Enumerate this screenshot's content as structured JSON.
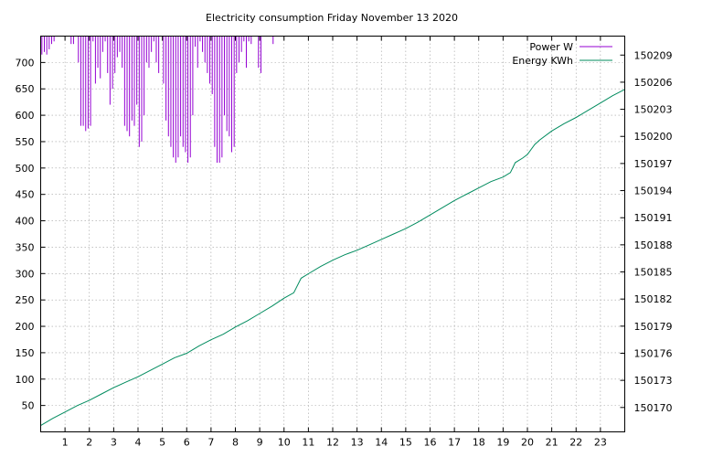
{
  "chart_data": {
    "type": "line",
    "title": "Electricity consumption Friday November 13 2020",
    "xlim": [
      0,
      24
    ],
    "x_ticks": [
      1,
      2,
      3,
      4,
      5,
      6,
      7,
      8,
      9,
      10,
      11,
      12,
      13,
      14,
      15,
      16,
      17,
      18,
      19,
      20,
      21,
      22,
      23
    ],
    "y_left": {
      "lim": [
        0,
        750
      ],
      "ticks": [
        50,
        100,
        150,
        200,
        250,
        300,
        350,
        400,
        450,
        500,
        550,
        600,
        650,
        700
      ]
    },
    "y_right": {
      "lim": [
        150167.3,
        150211.1
      ],
      "ticks": [
        150170,
        150173,
        150176,
        150179,
        150182,
        150185,
        150188,
        150191,
        150194,
        150197,
        150200,
        150203,
        150206,
        150209
      ]
    },
    "grid": true,
    "legend_position": "top-right",
    "series": [
      {
        "name": "Power W",
        "color": "#9400d3",
        "axis": "left",
        "style": "impulses",
        "x": [
          0.05,
          0.15,
          0.25,
          0.35,
          0.45,
          0.55,
          1.25,
          1.35,
          1.55,
          1.65,
          1.75,
          1.85,
          1.95,
          2.05,
          2.15,
          2.25,
          2.35,
          2.45,
          2.55,
          2.65,
          2.75,
          2.85,
          2.95,
          3.05,
          3.15,
          3.25,
          3.35,
          3.45,
          3.55,
          3.65,
          3.75,
          3.85,
          3.95,
          4.05,
          4.15,
          4.25,
          4.35,
          4.45,
          4.55,
          4.65,
          4.75,
          4.85,
          5.05,
          5.15,
          5.25,
          5.35,
          5.45,
          5.55,
          5.65,
          5.75,
          5.85,
          5.95,
          6.05,
          6.15,
          6.25,
          6.35,
          6.45,
          6.55,
          6.65,
          6.75,
          6.85,
          6.95,
          7.05,
          7.15,
          7.25,
          7.35,
          7.45,
          7.55,
          7.65,
          7.75,
          7.85,
          7.95,
          8.05,
          8.15,
          8.25,
          8.35,
          8.45,
          8.55,
          8.65,
          8.95,
          9.05,
          9.55
        ],
        "values": [
          715,
          720,
          715,
          725,
          735,
          740,
          735,
          735,
          700,
          580,
          580,
          570,
          575,
          580,
          740,
          660,
          690,
          670,
          720,
          740,
          680,
          620,
          650,
          680,
          710,
          720,
          690,
          580,
          570,
          560,
          590,
          580,
          620,
          540,
          550,
          600,
          700,
          690,
          720,
          740,
          700,
          680,
          660,
          590,
          560,
          540,
          520,
          510,
          520,
          560,
          540,
          530,
          510,
          520,
          600,
          730,
          690,
          740,
          720,
          700,
          680,
          660,
          640,
          540,
          510,
          510,
          520,
          600,
          570,
          560,
          530,
          540,
          680,
          700,
          720,
          740,
          690,
          740,
          735,
          690,
          680,
          735
        ]
      },
      {
        "name": "Energy KWh",
        "color": "#008b5e",
        "axis": "right",
        "style": "line",
        "x": [
          0,
          0.5,
          1,
          1.5,
          2,
          2.5,
          3,
          3.5,
          4,
          4.5,
          5,
          5.5,
          6,
          6.5,
          7,
          7.5,
          8,
          8.5,
          9,
          9.5,
          10,
          10.4,
          10.7,
          11,
          11.5,
          12,
          12.5,
          13,
          13.5,
          14,
          14.5,
          15,
          15.5,
          16,
          16.5,
          17,
          17.5,
          18,
          18.5,
          19,
          19.3,
          19.5,
          19.8,
          20,
          20.3,
          20.5,
          21,
          21.5,
          22,
          22.5,
          23,
          23.5,
          24
        ],
        "values": [
          150168.0,
          150168.8,
          150169.5,
          150170.2,
          150170.8,
          150171.5,
          150172.2,
          150172.8,
          150173.4,
          150174.1,
          150174.8,
          150175.5,
          150176.0,
          150176.8,
          150177.5,
          150178.1,
          150178.9,
          150179.6,
          150180.4,
          150181.2,
          150182.1,
          150182.7,
          150184.3,
          150184.8,
          150185.6,
          150186.3,
          150186.9,
          150187.4,
          150188.0,
          150188.6,
          150189.2,
          150189.8,
          150190.5,
          150191.3,
          150192.1,
          150192.9,
          150193.6,
          150194.3,
          150195.0,
          150195.5,
          150196.0,
          150197.1,
          150197.6,
          150198.0,
          150199.1,
          150199.6,
          150200.6,
          150201.4,
          150202.1,
          150202.9,
          150203.7,
          150204.5,
          150205.2
        ]
      }
    ]
  }
}
